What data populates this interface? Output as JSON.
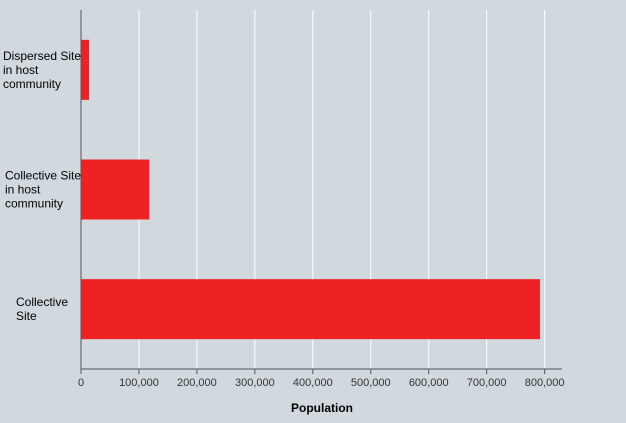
{
  "colors": {
    "background": "#d1d9de",
    "bar": "#ee2224",
    "grid": "#ffffff",
    "axis": "#555555"
  },
  "chart_data": {
    "type": "bar",
    "orientation": "horizontal",
    "categories": [
      "Dispersed Site in host community",
      "Collective Site in host community",
      "Collective Site"
    ],
    "category_label_lines": [
      [
        "Dispersed Site",
        "in host",
        "community"
      ],
      [
        "Collective Site",
        "in host",
        "community"
      ],
      [
        "Collective",
        "Site"
      ]
    ],
    "values": [
      14000,
      118000,
      792000
    ],
    "xlabel": "Population",
    "ylabel": "",
    "xlim": [
      0,
      830000
    ],
    "xticks": [
      0,
      100000,
      200000,
      300000,
      400000,
      500000,
      600000,
      700000,
      800000
    ],
    "xtick_labels": [
      "0",
      "100,000",
      "200,000",
      "300,000",
      "400,000",
      "500,000",
      "600,000",
      "700,000",
      "800,000"
    ],
    "grid": "vertical",
    "legend": "none"
  }
}
